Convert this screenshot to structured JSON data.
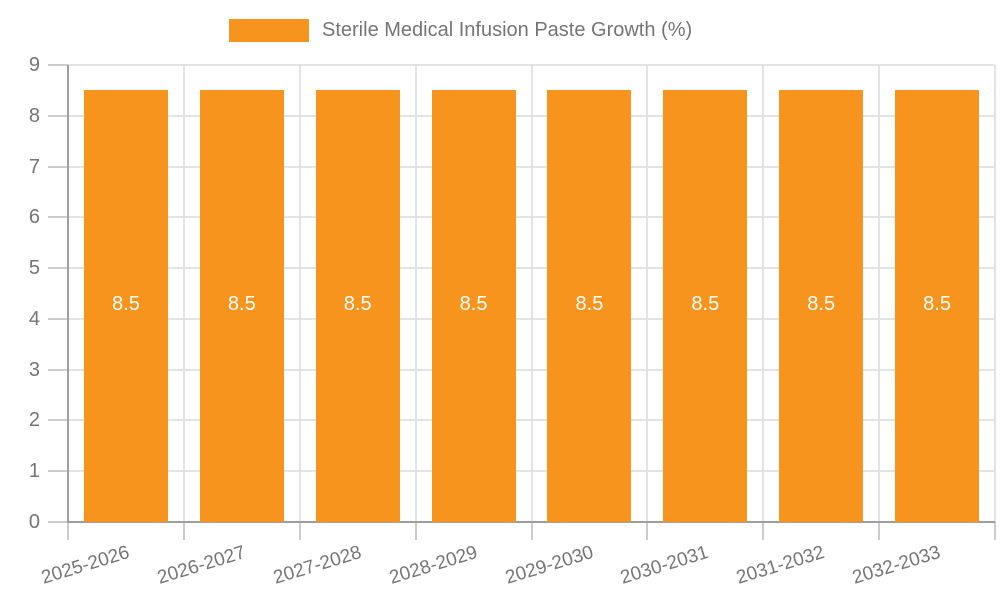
{
  "chart_data": {
    "type": "bar",
    "title": "Sterile Medical Infusion Paste Growth (%)",
    "categories": [
      "2025-2026",
      "2026-2027",
      "2027-2028",
      "2028-2029",
      "2029-2030",
      "2030-2031",
      "2031-2032",
      "2032-2033"
    ],
    "series": [
      {
        "name": "Sterile Medical Infusion Paste Growth (%)",
        "values": [
          8.5,
          8.5,
          8.5,
          8.5,
          8.5,
          8.5,
          8.5,
          8.5
        ]
      }
    ],
    "bar_value_labels": [
      "8.5",
      "8.5",
      "8.5",
      "8.5",
      "8.5",
      "8.5",
      "8.5",
      "8.5"
    ],
    "y_tick_labels": [
      "0",
      "1",
      "2",
      "3",
      "4",
      "5",
      "6",
      "7",
      "8",
      "9"
    ],
    "ylim": [
      0,
      9
    ],
    "y_tick_step": 1,
    "grid": true,
    "legend_position": "top",
    "colors": {
      "bar": "#F7941D",
      "bar_label": "#FFFFFF",
      "axis_label": "#757575",
      "grid_line": "#E3E3E3",
      "tick_line": "#CCCCCC",
      "axis_line": "#9E9E9E",
      "background": "#FFFFFF"
    }
  }
}
